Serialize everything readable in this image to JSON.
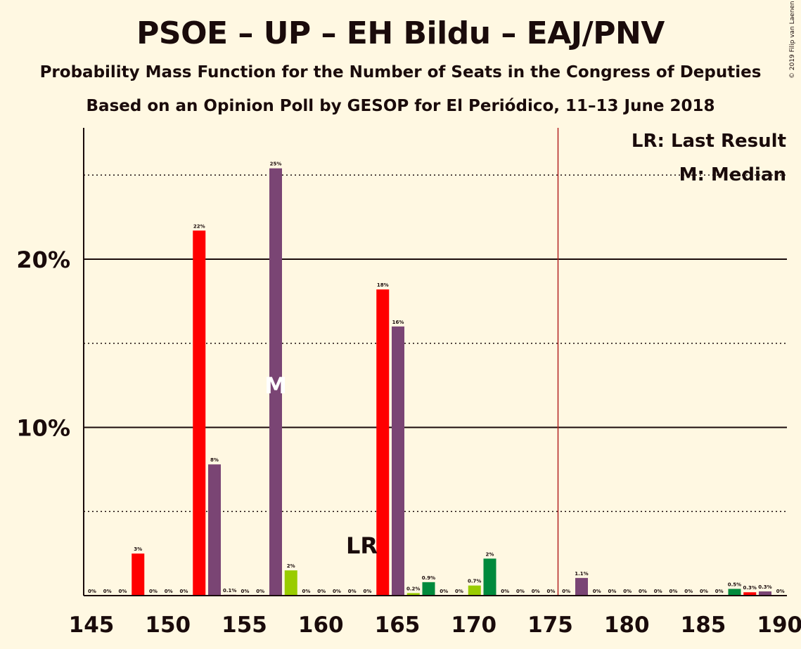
{
  "title": "PSOE – UP – EH Bildu – EAJ/PNV",
  "subtitle": "Probability Mass Function for the Number of Seats in the Congress of Deputies",
  "subtitle2": "Based on an Opinion Poll by GESOP for El Periódico, 11–13 June 2018",
  "copyright": "© 2019 Filip van Laenen",
  "legend": {
    "last_result": "LR: Last Result",
    "median": "M: Median"
  },
  "markers": {
    "lr_label": "LR",
    "median_label": "M",
    "last_result_seats": 164,
    "median_seats": 157,
    "majority_seats": 176
  },
  "colors": {
    "background": "#fff8e2",
    "red": "#ff0000",
    "purple": "#7a4574",
    "light_green": "#99cc00",
    "dark_green": "#008a3c",
    "majority_line": "#b22222"
  },
  "chart_data": {
    "type": "bar",
    "xlabel": "",
    "ylabel": "",
    "xlim": [
      145,
      190
    ],
    "ylim": [
      0,
      27.5
    ],
    "x_ticks": [
      145,
      150,
      155,
      160,
      165,
      170,
      175,
      180,
      185,
      190
    ],
    "y_ticks": [
      {
        "value": 10,
        "label": "10%"
      },
      {
        "value": 20,
        "label": "20%"
      }
    ],
    "dotted_gridlines": [
      5,
      15,
      25
    ],
    "bars": [
      {
        "x": 146,
        "value": 0,
        "label": "0%",
        "color": "red"
      },
      {
        "x": 147,
        "value": 0,
        "label": "0%",
        "color": "red"
      },
      {
        "x": 148,
        "value": 0,
        "label": "0%",
        "color": "red"
      },
      {
        "x": 149,
        "value": 2.5,
        "label": "3%",
        "color": "red"
      },
      {
        "x": 150,
        "value": 0,
        "label": "0%",
        "color": "red"
      },
      {
        "x": 151,
        "value": 0,
        "label": "0%",
        "color": "red"
      },
      {
        "x": 152,
        "value": 0,
        "label": "0%",
        "color": "red"
      },
      {
        "x": 153,
        "value": 21.7,
        "label": "22%",
        "color": "red"
      },
      {
        "x": 154,
        "value": 7.8,
        "label": "8%",
        "color": "purple"
      },
      {
        "x": 155,
        "value": 0.05,
        "label": "0.1%",
        "color": "purple"
      },
      {
        "x": 156,
        "value": 0,
        "label": "0%",
        "color": "purple"
      },
      {
        "x": 157,
        "value": 0,
        "label": "0%",
        "color": "purple"
      },
      {
        "x": 158,
        "value": 25.4,
        "label": "25%",
        "color": "purple"
      },
      {
        "x": 159,
        "value": 1.5,
        "label": "2%",
        "color": "light_green"
      },
      {
        "x": 160,
        "value": 0,
        "label": "0%",
        "color": "light_green"
      },
      {
        "x": 161,
        "value": 0,
        "label": "0%",
        "color": "light_green"
      },
      {
        "x": 162,
        "value": 0,
        "label": "0%",
        "color": "light_green"
      },
      {
        "x": 163,
        "value": 0,
        "label": "0%",
        "color": "light_green"
      },
      {
        "x": 164,
        "value": 0,
        "label": "0%",
        "color": "light_green"
      },
      {
        "x": 165,
        "value": 18.2,
        "label": "18%",
        "color": "red"
      },
      {
        "x": 166,
        "value": 16.0,
        "label": "16%",
        "color": "purple"
      },
      {
        "x": 167,
        "value": 0.15,
        "label": "0.2%",
        "color": "light_green"
      },
      {
        "x": 168,
        "value": 0.8,
        "label": "0.9%",
        "color": "dark_green"
      },
      {
        "x": 169,
        "value": 0,
        "label": "0%",
        "color": "dark_green"
      },
      {
        "x": 170,
        "value": 0,
        "label": "0%",
        "color": "dark_green"
      },
      {
        "x": 171,
        "value": 0.6,
        "label": "0.7%",
        "color": "light_green"
      },
      {
        "x": 172,
        "value": 2.2,
        "label": "2%",
        "color": "dark_green"
      },
      {
        "x": 173,
        "value": 0,
        "label": "0%",
        "color": "dark_green"
      },
      {
        "x": 174,
        "value": 0,
        "label": "0%",
        "color": "dark_green"
      },
      {
        "x": 175,
        "value": 0,
        "label": "0%",
        "color": "dark_green"
      },
      {
        "x": 176,
        "value": 0,
        "label": "0%",
        "color": "dark_green"
      },
      {
        "x": 177,
        "value": 0,
        "label": "0%",
        "color": "dark_green"
      },
      {
        "x": 178,
        "value": 1.05,
        "label": "1.1%",
        "color": "purple"
      },
      {
        "x": 179,
        "value": 0,
        "label": "0%",
        "color": "purple"
      },
      {
        "x": 180,
        "value": 0,
        "label": "0%",
        "color": "purple"
      },
      {
        "x": 181,
        "value": 0,
        "label": "0%",
        "color": "purple"
      },
      {
        "x": 182,
        "value": 0,
        "label": "0%",
        "color": "purple"
      },
      {
        "x": 183,
        "value": 0,
        "label": "0%",
        "color": "purple"
      },
      {
        "x": 184,
        "value": 0,
        "label": "0%",
        "color": "purple"
      },
      {
        "x": 185,
        "value": 0,
        "label": "0%",
        "color": "purple"
      },
      {
        "x": 186,
        "value": 0,
        "label": "0%",
        "color": "purple"
      },
      {
        "x": 187,
        "value": 0,
        "label": "0%",
        "color": "purple"
      },
      {
        "x": 188,
        "value": 0.4,
        "label": "0.5%",
        "color": "dark_green"
      },
      {
        "x": 189,
        "value": 0.2,
        "label": "0.3%",
        "color": "red"
      },
      {
        "x": 190,
        "value": 0.25,
        "label": "0.3%",
        "color": "purple"
      },
      {
        "x": 191,
        "value": 0,
        "label": "0%",
        "color": "purple"
      }
    ]
  }
}
